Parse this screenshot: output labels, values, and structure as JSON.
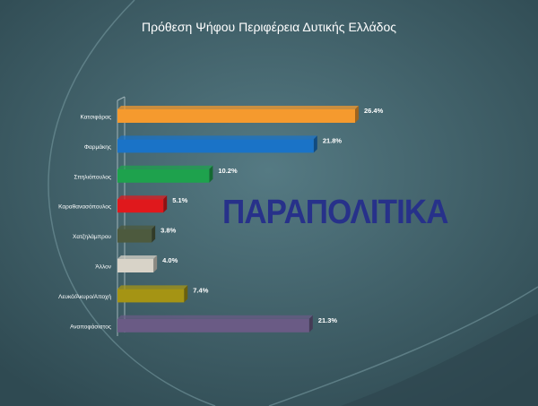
{
  "logo_text": "ΠΑΡΑΠΟΛΙΤΙΚΑ",
  "chart_data": {
    "type": "bar",
    "orientation": "horizontal",
    "title": "Πρόθεση Ψήφου Περιφέρεια Δυτικής Ελλάδος",
    "categories": [
      "Κατσιφάρας",
      "Φαρμάκης",
      "Σπηλιόπουλος",
      "Καραθανασόπουλος",
      "Χατζηλάμπρου",
      "Άλλον",
      "Λευκό/Άκυρο/Αποχή",
      "Αναποφάσιστος"
    ],
    "values": [
      26.4,
      21.8,
      10.2,
      5.1,
      3.8,
      4.0,
      7.4,
      21.3
    ],
    "value_labels": [
      "26.4%",
      "21.8%",
      "10.2%",
      "5.1%",
      "3.8%",
      "4.0%",
      "7.4%",
      "21.3%"
    ],
    "colors": [
      "#f59a2e",
      "#1a73c7",
      "#1ea24d",
      "#e0181c",
      "#4d5a3e",
      "#d8d3c8",
      "#a59414",
      "#6a5b85"
    ],
    "xlim": [
      0,
      28
    ],
    "grid": false,
    "legend": "none"
  }
}
